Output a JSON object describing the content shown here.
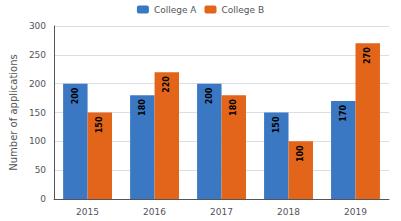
{
  "chart_data": {
    "type": "bar",
    "ylabel": "Number of applications",
    "categories": [
      "2015",
      "2016",
      "2017",
      "2018",
      "2019"
    ],
    "series": [
      {
        "name": "College A",
        "color": "#3B78C3",
        "values": [
          200,
          180,
          200,
          150,
          170
        ]
      },
      {
        "name": "College B",
        "color": "#E2651A",
        "values": [
          150,
          220,
          180,
          100,
          270
        ]
      }
    ],
    "ylim": [
      0,
      300
    ],
    "yticks": [
      0,
      50,
      100,
      150,
      200,
      250,
      300
    ],
    "grid": true,
    "legend": "top",
    "data_labels": true
  }
}
